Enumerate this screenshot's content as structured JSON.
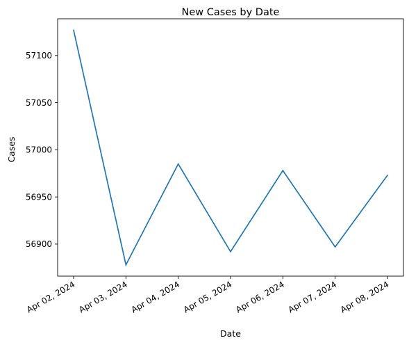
{
  "chart_data": {
    "type": "line",
    "title": "New Cases by Date",
    "xlabel": "Date",
    "ylabel": "Cases",
    "x": [
      "Apr 02, 2024",
      "Apr 03, 2024",
      "Apr 04, 2024",
      "Apr 05, 2024",
      "Apr 06, 2024",
      "Apr 07, 2024",
      "Apr 08, 2024"
    ],
    "series": [
      {
        "values": [
          57127,
          56878,
          56985,
          56892,
          56978,
          56897,
          56973
        ],
        "color": "#1f77b4"
      }
    ],
    "ylim": [
      56866,
      57139
    ],
    "yticks": [
      56900,
      56950,
      57000,
      57050,
      57100
    ],
    "grid": false,
    "legend": "none"
  }
}
